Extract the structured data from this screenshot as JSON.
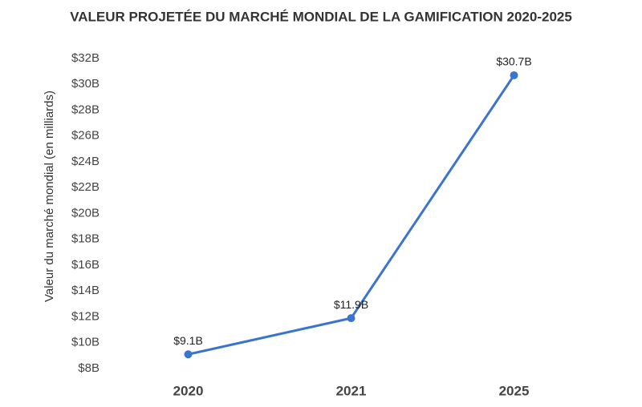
{
  "chart_data": {
    "type": "line",
    "title": "VALEUR PROJETÉE DU MARCHÉ MONDIAL DE LA GAMIFICATION 2020-2025",
    "y_label": "Valeur du marché mondial (en milliards)",
    "categories": [
      "2020",
      "2021",
      "2025"
    ],
    "values": [
      9.1,
      11.9,
      30.7
    ],
    "value_labels": [
      "$9.1B",
      "$11.9B",
      "$30.7B"
    ],
    "color": "#3a74d0",
    "ylim": [
      8,
      32
    ],
    "yticks": [
      {
        "value": 8,
        "label": "$8B"
      },
      {
        "value": 10,
        "label": "$10B"
      },
      {
        "value": 12,
        "label": "$12B"
      },
      {
        "value": 14,
        "label": "$14B"
      },
      {
        "value": 16,
        "label": "$16B"
      },
      {
        "value": 18,
        "label": "$18B"
      },
      {
        "value": 20,
        "label": "$20B"
      },
      {
        "value": 22,
        "label": "$22B"
      },
      {
        "value": 24,
        "label": "$24B"
      },
      {
        "value": 26,
        "label": "$26B"
      },
      {
        "value": 28,
        "label": "$28B"
      },
      {
        "value": 30,
        "label": "$30B"
      },
      {
        "value": 32,
        "label": "$32B"
      }
    ],
    "grid": false
  }
}
